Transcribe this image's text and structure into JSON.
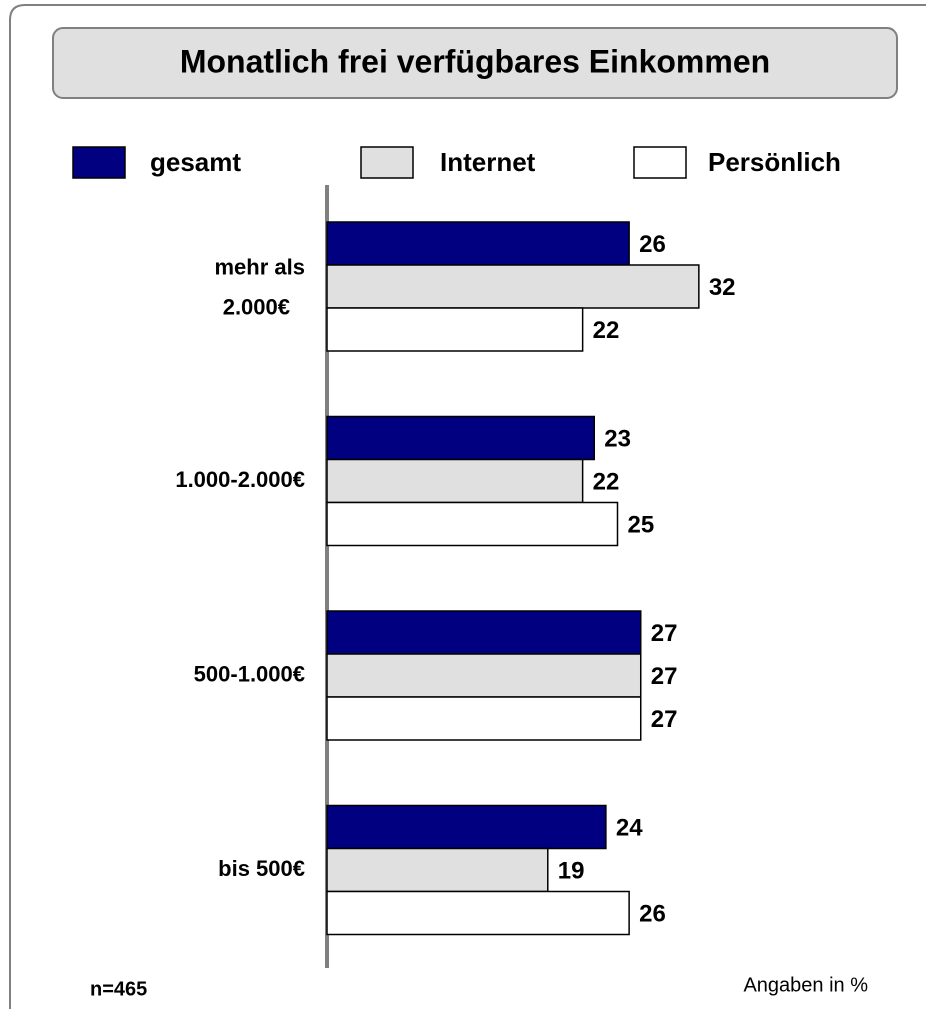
{
  "chart_data": {
    "type": "bar",
    "orientation": "horizontal",
    "title": "Monatlich frei verfügbares Einkommen",
    "categories": [
      "mehr als 2.000€",
      "1.000-2.000€",
      "500-1.000€",
      "bis 500€"
    ],
    "series": [
      {
        "name": "gesamt",
        "color": "#000080",
        "values": [
          26,
          23,
          27,
          24
        ]
      },
      {
        "name": "Internet",
        "color": "#e0e0e0",
        "values": [
          32,
          22,
          27,
          19
        ]
      },
      {
        "name": "Persönlich",
        "color": "#ffffff",
        "values": [
          22,
          25,
          27,
          26
        ]
      }
    ],
    "footnote": "n=465",
    "unit_note": "Angaben in %"
  }
}
